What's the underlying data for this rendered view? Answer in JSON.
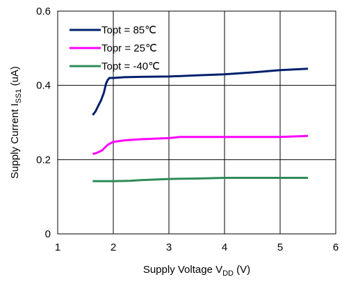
{
  "chart_data": {
    "type": "line",
    "xlabel": "Supply Voltage V",
    "xlabel_sub": "DD",
    "xlabel_unit": " (V)",
    "ylabel": "Supply Current I",
    "ylabel_sub": "SS1",
    "ylabel_unit": " (uA)",
    "xlim": [
      1,
      6
    ],
    "ylim": [
      0,
      0.6
    ],
    "x_ticks": [
      "1",
      "2",
      "3",
      "4",
      "5",
      "6"
    ],
    "y_ticks": [
      "0",
      "0.2",
      "0.4",
      "0.6"
    ],
    "grid": true,
    "legend_position": "top-left",
    "series": [
      {
        "name": "Topt = 85",
        "unit": "℃",
        "color": "#00206b",
        "x": [
          1.63,
          1.68,
          1.73,
          1.78,
          1.83,
          1.87,
          1.9,
          1.93,
          1.97,
          2.0,
          2.2,
          2.5,
          3.0,
          3.5,
          4.0,
          4.5,
          5.0,
          5.5
        ],
        "y": [
          0.32,
          0.33,
          0.345,
          0.36,
          0.38,
          0.405,
          0.415,
          0.42,
          0.42,
          0.42,
          0.422,
          0.423,
          0.424,
          0.427,
          0.43,
          0.435,
          0.441,
          0.445
        ]
      },
      {
        "name": "Topr = 25",
        "unit": "℃",
        "color": "#ff00ff",
        "x": [
          1.63,
          1.7,
          1.8,
          1.9,
          2.0,
          2.1,
          2.2,
          2.5,
          3.0,
          3.2,
          4.0,
          5.0,
          5.5
        ],
        "y": [
          0.215,
          0.218,
          0.225,
          0.24,
          0.248,
          0.25,
          0.252,
          0.255,
          0.258,
          0.261,
          0.261,
          0.261,
          0.264
        ]
      },
      {
        "name": "Topt = -40",
        "unit": "℃",
        "color": "#2e8b57",
        "x": [
          1.63,
          2.0,
          2.3,
          2.5,
          3.0,
          3.5,
          4.0,
          4.5,
          5.0,
          5.5
        ],
        "y": [
          0.142,
          0.142,
          0.143,
          0.145,
          0.148,
          0.149,
          0.151,
          0.151,
          0.151,
          0.151
        ]
      }
    ]
  }
}
